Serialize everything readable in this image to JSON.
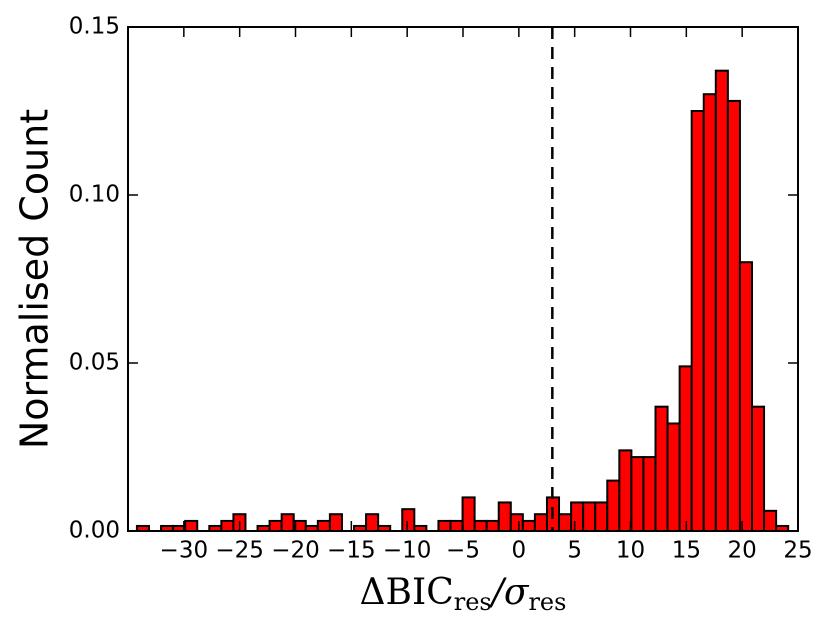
{
  "chart_data": {
    "type": "histogram",
    "ylabel": "Normalised Count",
    "xlabel": [
      "ΔBIC",
      "res",
      "/σ",
      "res"
    ],
    "bins": [
      -34.2,
      -33.12,
      -32.04,
      -30.96,
      -29.88,
      -28.8,
      -27.72,
      -26.64,
      -25.56,
      -24.48,
      -23.4,
      -22.32,
      -21.24,
      -20.16,
      -19.08,
      -18.0,
      -16.92,
      -15.84,
      -14.76,
      -13.68,
      -12.6,
      -11.52,
      -10.44,
      -9.36,
      -8.28,
      -7.2,
      -6.12,
      -5.04,
      -3.96,
      -2.88,
      -1.8,
      -0.72,
      0.36,
      1.44,
      2.52,
      3.6,
      4.68,
      5.76,
      6.84,
      7.92,
      9.0,
      10.08,
      11.16,
      12.24,
      13.32,
      14.4,
      15.48,
      16.56,
      17.64,
      18.72,
      19.8,
      20.88,
      21.96,
      23.04,
      24.12
    ],
    "values": [
      0.0015,
      0,
      0.0015,
      0.0015,
      0.003,
      0,
      0.0015,
      0.003,
      0.005,
      0,
      0.0015,
      0.003,
      0.005,
      0.003,
      0.0015,
      0.003,
      0.005,
      0,
      0.0015,
      0.005,
      0.0015,
      0,
      0.0065,
      0.0015,
      0,
      0.003,
      0.003,
      0.01,
      0.003,
      0.003,
      0.0085,
      0.005,
      0.003,
      0.005,
      0.01,
      0.005,
      0.0085,
      0.0085,
      0.0085,
      0.015,
      0.024,
      0.022,
      0.022,
      0.037,
      0.032,
      0.049,
      0.125,
      0.13,
      0.137,
      0.128,
      0.08,
      0.037,
      0.006,
      0.0015
    ],
    "color": "#ff0000",
    "vline": 3,
    "xlim": [
      -35,
      25
    ],
    "xticks": [
      {
        "value": -30,
        "label": "−30"
      },
      {
        "value": -25,
        "label": "−25"
      },
      {
        "value": -20,
        "label": "−20"
      },
      {
        "value": -15,
        "label": "−15"
      },
      {
        "value": -10,
        "label": "−10"
      },
      {
        "value": -5,
        "label": "−5"
      },
      0,
      5,
      10,
      15,
      20,
      25
    ],
    "ylim": [
      0,
      0.15
    ],
    "yticks": [
      {
        "value": 0,
        "label": "0.00"
      },
      0.05,
      {
        "value": 0.1,
        "label": "0.10"
      },
      0.15
    ]
  }
}
